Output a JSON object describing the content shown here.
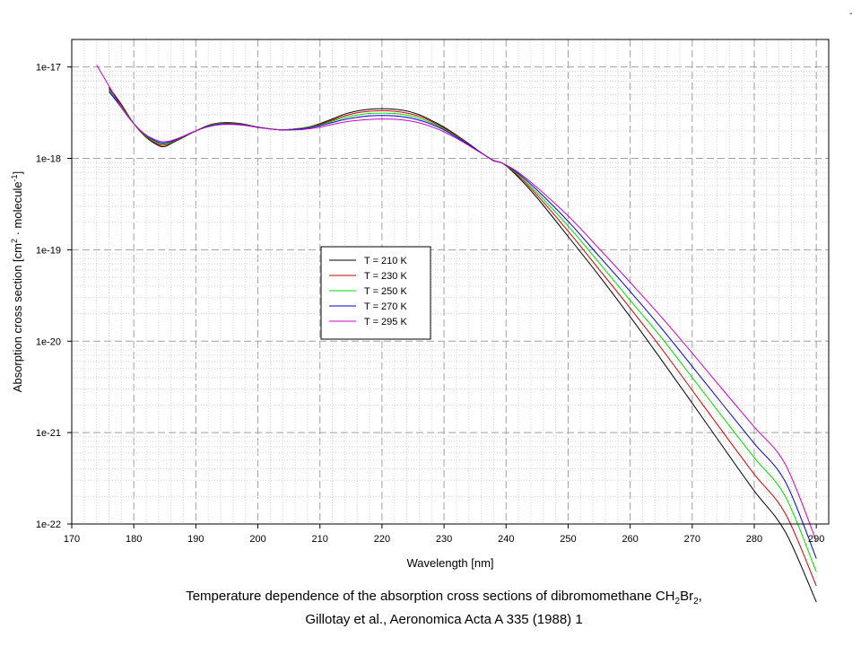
{
  "chart_data": {
    "type": "line",
    "xlabel": "Wavelength [nm]",
    "ylabel": "Absorption cross section [cm2 · molecule-1]",
    "ylabel_parts": [
      "Absorption cross section [cm",
      "2",
      " · molecule",
      "-1",
      "]"
    ],
    "xlim": [
      170,
      292
    ],
    "ylim": [
      1e-22,
      2e-17
    ],
    "yscale": "log",
    "grid": true,
    "legend_position": "center-left",
    "x_ticks": [
      "170",
      "180",
      "190",
      "200",
      "210",
      "220",
      "230",
      "240",
      "250",
      "260",
      "270",
      "280",
      "290"
    ],
    "y_ticks": [
      "1e-17",
      "1e-18",
      "1e-19",
      "1e-20",
      "1e-21",
      "1e-22"
    ],
    "series": [
      {
        "name": "T = 210 K",
        "color": "#000000",
        "x": [
          176,
          178,
          180,
          182,
          184,
          185,
          186,
          188,
          190,
          192,
          194,
          196,
          198,
          200,
          202,
          204,
          206,
          208,
          210,
          212,
          214,
          216,
          218,
          220,
          222,
          224,
          226,
          228,
          230,
          232,
          234,
          236,
          238,
          239.5,
          242,
          245,
          250,
          255,
          260,
          265,
          270,
          275,
          280,
          285,
          290
        ],
        "y": [
          6e-18,
          3.9e-18,
          2.4e-18,
          1.7e-18,
          1.38e-18,
          1.35e-18,
          1.45e-18,
          1.7e-18,
          2e-18,
          2.3e-18,
          2.45e-18,
          2.45e-18,
          2.35e-18,
          2.2e-18,
          2.1e-18,
          2.05e-18,
          2.1e-18,
          2.2e-18,
          2.4e-18,
          2.7e-18,
          3.05e-18,
          3.3e-18,
          3.45e-18,
          3.5e-18,
          3.45e-18,
          3.3e-18,
          3e-18,
          2.6e-18,
          2.2e-18,
          1.8e-18,
          1.45e-18,
          1.15e-18,
          9.4e-19,
          8.8e-19,
          6.2e-19,
          3.7e-19,
          1.4e-19,
          5.2e-20,
          1.85e-20,
          6.3e-21,
          2.1e-21,
          6.9e-22,
          2.3e-22,
          8.2e-23,
          1.4e-23
        ]
      },
      {
        "name": "T = 230 K",
        "color": "#cc0000",
        "x": [
          176,
          178,
          180,
          182,
          184,
          185,
          186,
          188,
          190,
          192,
          194,
          196,
          198,
          200,
          202,
          204,
          206,
          208,
          210,
          212,
          214,
          216,
          218,
          220,
          222,
          224,
          226,
          228,
          230,
          232,
          234,
          236,
          238,
          239.5,
          242,
          245,
          250,
          255,
          260,
          265,
          270,
          275,
          280,
          285,
          290
        ],
        "y": [
          5.8e-18,
          3.8e-18,
          2.4e-18,
          1.72e-18,
          1.42e-18,
          1.4e-18,
          1.48e-18,
          1.72e-18,
          2e-18,
          2.28e-18,
          2.42e-18,
          2.42e-18,
          2.33e-18,
          2.2e-18,
          2.1e-18,
          2.05e-18,
          2.1e-18,
          2.2e-18,
          2.35e-18,
          2.62e-18,
          2.92e-18,
          3.15e-18,
          3.28e-18,
          3.32e-18,
          3.28e-18,
          3.13e-18,
          2.88e-18,
          2.52e-18,
          2.15e-18,
          1.77e-18,
          1.43e-18,
          1.15e-18,
          9.45e-19,
          8.8e-19,
          6.4e-19,
          3.95e-19,
          1.6e-19,
          6.1e-20,
          2.3e-20,
          8.4e-21,
          2.9e-21,
          1e-21,
          3.5e-22,
          1.3e-22,
          2.1e-23
        ]
      },
      {
        "name": "T = 250 K",
        "color": "#00dd00",
        "x": [
          176,
          178,
          180,
          182,
          184,
          185,
          186,
          188,
          190,
          192,
          194,
          196,
          198,
          200,
          202,
          204,
          206,
          208,
          210,
          212,
          214,
          216,
          218,
          220,
          222,
          224,
          226,
          228,
          230,
          232,
          234,
          236,
          238,
          239.5,
          242,
          245,
          250,
          255,
          260,
          265,
          270,
          275,
          280,
          285,
          290
        ],
        "y": [
          5.6e-18,
          3.7e-18,
          2.4e-18,
          1.75e-18,
          1.46e-18,
          1.44e-18,
          1.5e-18,
          1.73e-18,
          2e-18,
          2.27e-18,
          2.4e-18,
          2.4e-18,
          2.32e-18,
          2.2e-18,
          2.1e-18,
          2.05e-18,
          2.1e-18,
          2.18e-18,
          2.32e-18,
          2.55e-18,
          2.8e-18,
          2.98e-18,
          3.1e-18,
          3.13e-18,
          3.1e-18,
          2.97e-18,
          2.75e-18,
          2.44e-18,
          2.1e-18,
          1.74e-18,
          1.42e-18,
          1.15e-18,
          9.5e-19,
          8.8e-19,
          6.6e-19,
          4.2e-19,
          1.82e-19,
          7.2e-20,
          2.8e-20,
          1.1e-20,
          4e-21,
          1.45e-21,
          5.3e-22,
          2e-22,
          3e-23
        ]
      },
      {
        "name": "T = 270 K",
        "color": "#0000cc",
        "x": [
          176,
          178,
          180,
          182,
          184,
          185,
          186,
          188,
          190,
          192,
          194,
          196,
          198,
          200,
          202,
          204,
          206,
          208,
          210,
          212,
          214,
          216,
          218,
          220,
          222,
          224,
          226,
          228,
          230,
          232,
          234,
          236,
          238,
          239.5,
          242,
          245,
          250,
          255,
          260,
          265,
          270,
          275,
          280,
          285,
          290
        ],
        "y": [
          5.4e-18,
          3.6e-18,
          2.4e-18,
          1.78e-18,
          1.5e-18,
          1.48e-18,
          1.53e-18,
          1.74e-18,
          2e-18,
          2.25e-18,
          2.38e-18,
          2.38e-18,
          2.31e-18,
          2.2e-18,
          2.1e-18,
          2.05e-18,
          2.08e-18,
          2.15e-18,
          2.28e-18,
          2.47e-18,
          2.67e-18,
          2.82e-18,
          2.92e-18,
          2.95e-18,
          2.92e-18,
          2.81e-18,
          2.62e-18,
          2.36e-18,
          2.05e-18,
          1.71e-18,
          1.41e-18,
          1.15e-18,
          9.5e-19,
          8.8e-19,
          6.8e-19,
          4.5e-19,
          2.05e-19,
          8.5e-20,
          3.5e-20,
          1.4e-20,
          5.3e-21,
          2e-21,
          7.6e-22,
          2.9e-22,
          4.2e-23
        ]
      },
      {
        "name": "T = 295 K",
        "color": "#cc00cc",
        "x": [
          174,
          176,
          178,
          180,
          182,
          184,
          185,
          186,
          188,
          190,
          192,
          194,
          196,
          198,
          200,
          202,
          204,
          206,
          208,
          210,
          212,
          214,
          216,
          218,
          220,
          222,
          224,
          226,
          228,
          230,
          232,
          234,
          236,
          238,
          239.5,
          242,
          245,
          250,
          255,
          260,
          265,
          270,
          275,
          280,
          285,
          290
        ],
        "y": [
          1.05e-17,
          6.2e-18,
          3.6e-18,
          2.4e-18,
          1.8e-18,
          1.55e-18,
          1.52e-18,
          1.56e-18,
          1.75e-18,
          2e-18,
          2.22e-18,
          2.34e-18,
          2.35e-18,
          2.29e-18,
          2.18e-18,
          2.1e-18,
          2.05e-18,
          2.05e-18,
          2.1e-18,
          2.2e-18,
          2.35e-18,
          2.5e-18,
          2.6e-18,
          2.67e-18,
          2.7e-18,
          2.68e-18,
          2.6e-18,
          2.45e-18,
          2.22e-18,
          1.95e-18,
          1.66e-18,
          1.38e-18,
          1.14e-18,
          9.5e-19,
          8.8e-19,
          7e-19,
          4.8e-19,
          2.35e-19,
          1.03e-19,
          4.4e-20,
          1.85e-20,
          7.4e-21,
          2.9e-21,
          1.15e-21,
          4.5e-22,
          6.5e-23
        ]
      }
    ]
  },
  "caption": {
    "line1_parts": [
      "Temperature dependence of the absorption cross sections of dibromomethane CH",
      "2",
      "Br",
      "2",
      ","
    ],
    "line2": "Gillotay et al., Aeronomica Acta A 335 (1988) 1"
  },
  "corner_mark": "-"
}
